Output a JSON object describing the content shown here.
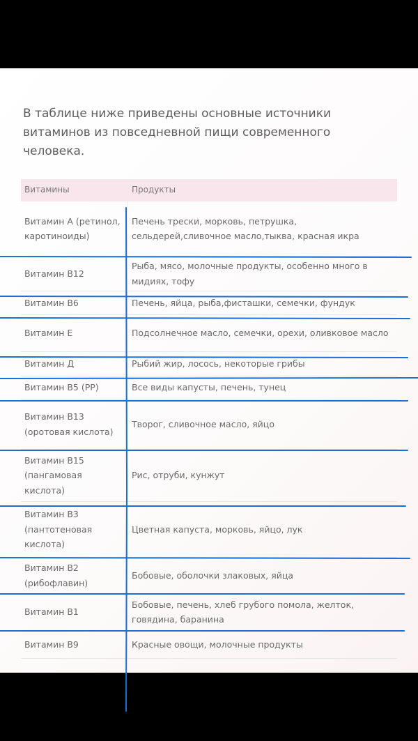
{
  "intro": "В таблице ниже приведены основные источники витаминов из повседневной пищи современного человека.",
  "table": {
    "headers": [
      "Витамины",
      "Продукты"
    ],
    "rows": [
      [
        "Витамин А (ретинол, каротиноиды)",
        "Печень трески, морковь, петрушка, сельдерей,сливочное масло,тыква, красная икра"
      ],
      [
        "Витамин В12",
        "Рыба, мясо, молочные продукты, особенно много в мидиях, тофу"
      ],
      [
        "Витамин В6",
        "Печень, яйца, рыба,фисташки, семечки, фундук"
      ],
      [
        "Витамин Е",
        "Подсолнечное масло, семечки, орехи, оливковое масло"
      ],
      [
        "Витамин Д",
        "Рыбий жир, лосось, некоторые грибы"
      ],
      [
        "Витамин В5 (РР)",
        "Все виды капусты, печень, тунец"
      ],
      [
        "Витамин В13 (оротовая кислота)",
        "Творог, сливочное масло, яйцо"
      ],
      [
        "Витамин В15 (пангамовая кислота)",
        "Рис, отруби, кунжут"
      ],
      [
        "Витамин В3 (пантотеновая кислота)",
        "Цветная капуста, морковь, яйцо, лук"
      ],
      [
        "Витамин В2 (рибофлавин)",
        "Бобовые, оболочки злаковых, яйца"
      ],
      [
        "Витамин В1",
        "Бобовые, печень, хлеб грубого помола, желток, говядина, баранина"
      ],
      [
        "Витамин В9",
        "Красные овощи, молочные продукты"
      ]
    ]
  },
  "colors": {
    "header_bg": "#f8e6ec",
    "ink_lines": "#1a6fd6",
    "text": "#6a6a6a"
  }
}
